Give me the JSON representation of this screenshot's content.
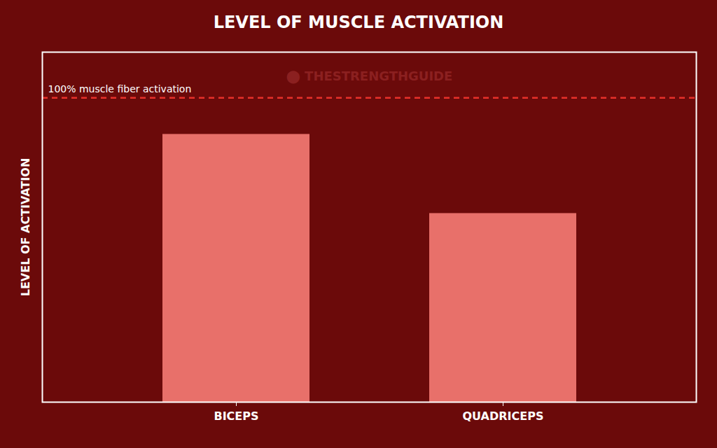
{
  "chart_data": {
    "type": "bar",
    "title": "LEVEL OF MUSCLE ACTIVATION",
    "ylabel": "LEVEL OF ACTIVATION",
    "categories": [
      "BICEPS",
      "QUADRICEPS"
    ],
    "values": [
      0.88,
      0.62
    ],
    "color": "#E8706A",
    "background_color": "#6B0A0A",
    "ylim": [
      0,
      1.15
    ],
    "yticks": [],
    "tick_labels": "x",
    "grid": false,
    "annotations": [
      {
        "text": "100% muscle fiber activation",
        "y": 1.0,
        "color": "#E8302A",
        "line_style": "dashed"
      },
      {
        "text": "⬤ THESTRENGTHGUIDE",
        "color": "#8B2020"
      }
    ]
  }
}
